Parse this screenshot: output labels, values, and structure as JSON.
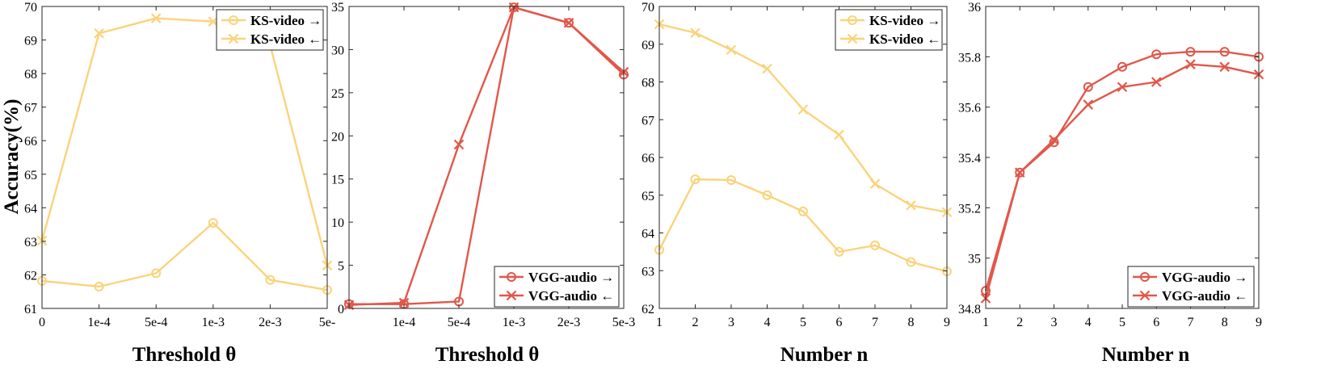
{
  "colors": {
    "ks": "#FAD37A",
    "vgg": "#E1574A"
  },
  "chart_data": [
    {
      "type": "line",
      "xlabel": "Threshold θ",
      "ylabel": "Accuracy(%)",
      "categories": [
        "0",
        "1e-4",
        "5e-4",
        "1e-3",
        "2e-3",
        "5e-"
      ],
      "ylim": [
        61,
        70
      ],
      "yticks": [
        "61",
        "62",
        "63",
        "64",
        "65",
        "66",
        "67",
        "68",
        "69",
        "70"
      ],
      "legend_position": "top-right",
      "series": [
        {
          "name": "KS-video →",
          "marker": "circle",
          "color": "#FAD37A",
          "values": [
            61.82,
            61.65,
            62.05,
            63.55,
            61.85,
            61.55
          ]
        },
        {
          "name": "KS-video ←",
          "marker": "cross",
          "color": "#FAD37A",
          "values": [
            63.02,
            69.2,
            69.65,
            69.55,
            68.85,
            62.28
          ]
        }
      ]
    },
    {
      "type": "line",
      "xlabel": "Threshold θ",
      "ylabel": "",
      "categories": [
        "",
        "1e-4",
        "5e-4",
        "1e-3",
        "2e-3",
        "5e-3"
      ],
      "ylim": [
        0,
        35
      ],
      "yticks": [
        "0",
        "5",
        "10",
        "15",
        "20",
        "25",
        "30",
        "35"
      ],
      "legend_position": "bottom-right",
      "series": [
        {
          "name": "VGG-audio →",
          "marker": "circle",
          "color": "#E1574A",
          "values": [
            0.5,
            0.5,
            0.8,
            34.9,
            33.1,
            27.1
          ]
        },
        {
          "name": "VGG-audio ←",
          "marker": "cross",
          "color": "#E1574A",
          "values": [
            0.4,
            0.65,
            19.0,
            34.9,
            33.1,
            27.4
          ]
        }
      ]
    },
    {
      "type": "line",
      "xlabel": "Number n",
      "ylabel": "",
      "categories": [
        "1",
        "2",
        "3",
        "4",
        "5",
        "6",
        "7",
        "8",
        "9"
      ],
      "ylim": [
        62,
        70
      ],
      "yticks": [
        "62",
        "63",
        "64",
        "65",
        "66",
        "67",
        "68",
        "69",
        "70"
      ],
      "legend_position": "top-right",
      "series": [
        {
          "name": "KS-video →",
          "marker": "circle",
          "color": "#FAD37A",
          "values": [
            63.55,
            65.42,
            65.4,
            65.0,
            64.57,
            63.5,
            63.67,
            63.23,
            62.98
          ]
        },
        {
          "name": "KS-video ←",
          "marker": "cross",
          "color": "#FAD37A",
          "values": [
            69.53,
            69.3,
            68.85,
            68.35,
            67.27,
            66.6,
            65.3,
            64.73,
            64.55
          ]
        }
      ]
    },
    {
      "type": "line",
      "xlabel": "Number n",
      "ylabel": "",
      "categories": [
        "1",
        "2",
        "3",
        "4",
        "5",
        "6",
        "7",
        "8",
        "9"
      ],
      "ylim": [
        34.8,
        36
      ],
      "yticks": [
        "34.8",
        "35",
        "35.2",
        "35.4",
        "35.6",
        "35.8",
        "36"
      ],
      "legend_position": "bottom-right",
      "series": [
        {
          "name": "VGG-audio →",
          "marker": "circle",
          "color": "#E1574A",
          "values": [
            34.87,
            35.34,
            35.46,
            35.68,
            35.76,
            35.81,
            35.82,
            35.82,
            35.8
          ]
        },
        {
          "name": "VGG-audio ←",
          "marker": "cross",
          "color": "#E1574A",
          "values": [
            34.84,
            35.34,
            35.47,
            35.61,
            35.68,
            35.7,
            35.77,
            35.76,
            35.73
          ]
        }
      ]
    }
  ]
}
